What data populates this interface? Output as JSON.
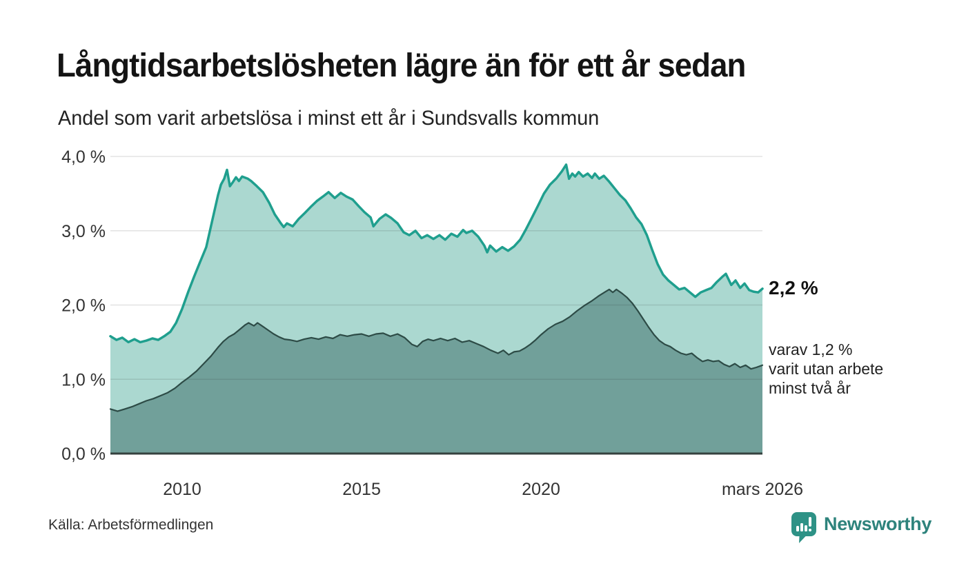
{
  "header": {
    "title": "Långtidsarbetslösheten lägre än för ett år sedan",
    "subtitle": "Andel som varit arbetslösa i minst ett år i Sundsvalls kommun"
  },
  "chart_data": {
    "type": "area",
    "title": "Långtidsarbetslösheten lägre än för ett år sedan",
    "subtitle": "Andel som varit arbetslösa i minst ett år i Sundsvalls kommun",
    "xlabel": "",
    "ylabel": "",
    "unit": "%",
    "xlim": [
      2008.0,
      2026.17
    ],
    "ylim": [
      0,
      4
    ],
    "grid": "horizontal",
    "legend_position": "none",
    "yticks": [
      {
        "value": 0,
        "label": "0,0 %"
      },
      {
        "value": 1,
        "label": "1,0 %"
      },
      {
        "value": 2,
        "label": "2,0 %"
      },
      {
        "value": 3,
        "label": "3,0 %"
      },
      {
        "value": 4,
        "label": "4,0 %"
      }
    ],
    "xticks": [
      {
        "value": 2010,
        "label": "2010"
      },
      {
        "value": 2015,
        "label": "2015"
      },
      {
        "value": 2020,
        "label": "2020"
      },
      {
        "value": 2026.17,
        "label": "mars 2026"
      }
    ],
    "series": [
      {
        "name": "arbetslösa minst ett år",
        "line_color": "#1f9f8e",
        "fill_color": "#abd8d0",
        "line_width": 3.5,
        "end_value": "2,2 %",
        "points": [
          [
            2008.0,
            1.58
          ],
          [
            2008.17,
            1.53
          ],
          [
            2008.33,
            1.56
          ],
          [
            2008.5,
            1.5
          ],
          [
            2008.67,
            1.54
          ],
          [
            2008.83,
            1.5
          ],
          [
            2009.0,
            1.52
          ],
          [
            2009.17,
            1.55
          ],
          [
            2009.33,
            1.53
          ],
          [
            2009.5,
            1.58
          ],
          [
            2009.67,
            1.64
          ],
          [
            2009.83,
            1.76
          ],
          [
            2010.0,
            1.95
          ],
          [
            2010.17,
            2.18
          ],
          [
            2010.33,
            2.38
          ],
          [
            2010.5,
            2.58
          ],
          [
            2010.67,
            2.78
          ],
          [
            2010.83,
            3.12
          ],
          [
            2011.0,
            3.48
          ],
          [
            2011.08,
            3.62
          ],
          [
            2011.17,
            3.7
          ],
          [
            2011.25,
            3.82
          ],
          [
            2011.33,
            3.6
          ],
          [
            2011.42,
            3.66
          ],
          [
            2011.5,
            3.72
          ],
          [
            2011.58,
            3.67
          ],
          [
            2011.67,
            3.73
          ],
          [
            2011.83,
            3.7
          ],
          [
            2011.92,
            3.67
          ],
          [
            2012.08,
            3.6
          ],
          [
            2012.25,
            3.52
          ],
          [
            2012.42,
            3.38
          ],
          [
            2012.58,
            3.22
          ],
          [
            2012.75,
            3.1
          ],
          [
            2012.83,
            3.05
          ],
          [
            2012.92,
            3.1
          ],
          [
            2013.08,
            3.06
          ],
          [
            2013.25,
            3.16
          ],
          [
            2013.42,
            3.24
          ],
          [
            2013.58,
            3.32
          ],
          [
            2013.75,
            3.4
          ],
          [
            2013.92,
            3.46
          ],
          [
            2014.08,
            3.52
          ],
          [
            2014.25,
            3.44
          ],
          [
            2014.42,
            3.51
          ],
          [
            2014.58,
            3.46
          ],
          [
            2014.75,
            3.42
          ],
          [
            2014.92,
            3.33
          ],
          [
            2015.08,
            3.25
          ],
          [
            2015.25,
            3.18
          ],
          [
            2015.33,
            3.06
          ],
          [
            2015.5,
            3.16
          ],
          [
            2015.67,
            3.22
          ],
          [
            2015.83,
            3.17
          ],
          [
            2016.0,
            3.1
          ],
          [
            2016.17,
            2.98
          ],
          [
            2016.33,
            2.94
          ],
          [
            2016.5,
            3.0
          ],
          [
            2016.67,
            2.9
          ],
          [
            2016.83,
            2.94
          ],
          [
            2017.0,
            2.89
          ],
          [
            2017.17,
            2.94
          ],
          [
            2017.33,
            2.88
          ],
          [
            2017.5,
            2.96
          ],
          [
            2017.67,
            2.92
          ],
          [
            2017.83,
            3.01
          ],
          [
            2017.92,
            2.97
          ],
          [
            2018.08,
            3.0
          ],
          [
            2018.25,
            2.92
          ],
          [
            2018.42,
            2.8
          ],
          [
            2018.5,
            2.71
          ],
          [
            2018.58,
            2.8
          ],
          [
            2018.75,
            2.72
          ],
          [
            2018.92,
            2.78
          ],
          [
            2019.08,
            2.73
          ],
          [
            2019.25,
            2.79
          ],
          [
            2019.42,
            2.88
          ],
          [
            2019.58,
            3.02
          ],
          [
            2019.75,
            3.18
          ],
          [
            2019.92,
            3.34
          ],
          [
            2020.08,
            3.5
          ],
          [
            2020.25,
            3.62
          ],
          [
            2020.42,
            3.7
          ],
          [
            2020.58,
            3.8
          ],
          [
            2020.7,
            3.89
          ],
          [
            2020.78,
            3.7
          ],
          [
            2020.87,
            3.77
          ],
          [
            2020.95,
            3.73
          ],
          [
            2021.05,
            3.79
          ],
          [
            2021.17,
            3.73
          ],
          [
            2021.3,
            3.77
          ],
          [
            2021.42,
            3.71
          ],
          [
            2021.5,
            3.77
          ],
          [
            2021.62,
            3.7
          ],
          [
            2021.75,
            3.74
          ],
          [
            2021.9,
            3.66
          ],
          [
            2022.05,
            3.57
          ],
          [
            2022.2,
            3.48
          ],
          [
            2022.35,
            3.41
          ],
          [
            2022.5,
            3.3
          ],
          [
            2022.65,
            3.18
          ],
          [
            2022.8,
            3.09
          ],
          [
            2022.95,
            2.94
          ],
          [
            2023.1,
            2.74
          ],
          [
            2023.25,
            2.55
          ],
          [
            2023.4,
            2.41
          ],
          [
            2023.55,
            2.33
          ],
          [
            2023.7,
            2.27
          ],
          [
            2023.85,
            2.21
          ],
          [
            2024.0,
            2.23
          ],
          [
            2024.15,
            2.17
          ],
          [
            2024.3,
            2.11
          ],
          [
            2024.45,
            2.17
          ],
          [
            2024.6,
            2.2
          ],
          [
            2024.75,
            2.23
          ],
          [
            2024.9,
            2.31
          ],
          [
            2025.05,
            2.38
          ],
          [
            2025.15,
            2.42
          ],
          [
            2025.3,
            2.27
          ],
          [
            2025.42,
            2.33
          ],
          [
            2025.55,
            2.23
          ],
          [
            2025.67,
            2.29
          ],
          [
            2025.8,
            2.2
          ],
          [
            2025.92,
            2.18
          ],
          [
            2026.05,
            2.17
          ],
          [
            2026.17,
            2.22
          ]
        ]
      },
      {
        "name": "varav arbetslösa minst två år",
        "line_color": "#2d4b46",
        "fill_color": "#71a09a",
        "line_width": 2.2,
        "end_value": "1,2 %",
        "points": [
          [
            2008.0,
            0.6
          ],
          [
            2008.2,
            0.57
          ],
          [
            2008.4,
            0.6
          ],
          [
            2008.6,
            0.63
          ],
          [
            2008.8,
            0.67
          ],
          [
            2009.0,
            0.71
          ],
          [
            2009.2,
            0.74
          ],
          [
            2009.4,
            0.78
          ],
          [
            2009.6,
            0.82
          ],
          [
            2009.8,
            0.88
          ],
          [
            2010.0,
            0.96
          ],
          [
            2010.2,
            1.03
          ],
          [
            2010.4,
            1.11
          ],
          [
            2010.6,
            1.21
          ],
          [
            2010.8,
            1.31
          ],
          [
            2011.0,
            1.43
          ],
          [
            2011.15,
            1.51
          ],
          [
            2011.3,
            1.57
          ],
          [
            2011.45,
            1.61
          ],
          [
            2011.6,
            1.67
          ],
          [
            2011.75,
            1.73
          ],
          [
            2011.85,
            1.76
          ],
          [
            2012.0,
            1.72
          ],
          [
            2012.1,
            1.76
          ],
          [
            2012.25,
            1.71
          ],
          [
            2012.4,
            1.66
          ],
          [
            2012.55,
            1.61
          ],
          [
            2012.7,
            1.57
          ],
          [
            2012.85,
            1.54
          ],
          [
            2013.0,
            1.53
          ],
          [
            2013.2,
            1.51
          ],
          [
            2013.4,
            1.54
          ],
          [
            2013.6,
            1.56
          ],
          [
            2013.8,
            1.54
          ],
          [
            2014.0,
            1.57
          ],
          [
            2014.2,
            1.55
          ],
          [
            2014.4,
            1.6
          ],
          [
            2014.6,
            1.58
          ],
          [
            2014.8,
            1.6
          ],
          [
            2015.0,
            1.61
          ],
          [
            2015.2,
            1.58
          ],
          [
            2015.4,
            1.61
          ],
          [
            2015.6,
            1.62
          ],
          [
            2015.8,
            1.58
          ],
          [
            2016.0,
            1.61
          ],
          [
            2016.2,
            1.56
          ],
          [
            2016.4,
            1.47
          ],
          [
            2016.55,
            1.44
          ],
          [
            2016.7,
            1.51
          ],
          [
            2016.85,
            1.54
          ],
          [
            2017.0,
            1.52
          ],
          [
            2017.2,
            1.55
          ],
          [
            2017.4,
            1.52
          ],
          [
            2017.6,
            1.55
          ],
          [
            2017.8,
            1.5
          ],
          [
            2018.0,
            1.52
          ],
          [
            2018.2,
            1.48
          ],
          [
            2018.4,
            1.44
          ],
          [
            2018.6,
            1.39
          ],
          [
            2018.8,
            1.35
          ],
          [
            2018.95,
            1.39
          ],
          [
            2019.1,
            1.33
          ],
          [
            2019.25,
            1.37
          ],
          [
            2019.4,
            1.38
          ],
          [
            2019.55,
            1.42
          ],
          [
            2019.7,
            1.47
          ],
          [
            2019.85,
            1.53
          ],
          [
            2020.0,
            1.6
          ],
          [
            2020.2,
            1.68
          ],
          [
            2020.4,
            1.74
          ],
          [
            2020.6,
            1.78
          ],
          [
            2020.8,
            1.84
          ],
          [
            2021.0,
            1.92
          ],
          [
            2021.2,
            1.99
          ],
          [
            2021.4,
            2.05
          ],
          [
            2021.6,
            2.12
          ],
          [
            2021.8,
            2.18
          ],
          [
            2021.9,
            2.21
          ],
          [
            2022.0,
            2.17
          ],
          [
            2022.1,
            2.21
          ],
          [
            2022.25,
            2.16
          ],
          [
            2022.4,
            2.1
          ],
          [
            2022.55,
            2.02
          ],
          [
            2022.7,
            1.92
          ],
          [
            2022.85,
            1.81
          ],
          [
            2023.0,
            1.7
          ],
          [
            2023.15,
            1.6
          ],
          [
            2023.3,
            1.52
          ],
          [
            2023.45,
            1.47
          ],
          [
            2023.6,
            1.44
          ],
          [
            2023.75,
            1.39
          ],
          [
            2023.9,
            1.35
          ],
          [
            2024.05,
            1.33
          ],
          [
            2024.2,
            1.35
          ],
          [
            2024.35,
            1.29
          ],
          [
            2024.5,
            1.24
          ],
          [
            2024.65,
            1.26
          ],
          [
            2024.8,
            1.24
          ],
          [
            2024.95,
            1.25
          ],
          [
            2025.1,
            1.2
          ],
          [
            2025.25,
            1.17
          ],
          [
            2025.4,
            1.21
          ],
          [
            2025.55,
            1.16
          ],
          [
            2025.7,
            1.19
          ],
          [
            2025.85,
            1.14
          ],
          [
            2026.0,
            1.16
          ],
          [
            2026.17,
            1.19
          ]
        ]
      }
    ],
    "annotations": {
      "primary_value": "2,2 %",
      "secondary_note": [
        "varav 1,2 %",
        "varit utan arbete",
        "minst två år"
      ]
    }
  },
  "footer": {
    "source": "Källa: Arbetsförmedlingen",
    "brand": "Newsworthy"
  },
  "colors": {
    "accent_teal": "#1f9f8e",
    "fill_light": "#abd8d0",
    "fill_dark": "#71a09a",
    "line_dark": "#2d4b46",
    "axis": "#35423f",
    "brand_teal": "#2e837c"
  }
}
